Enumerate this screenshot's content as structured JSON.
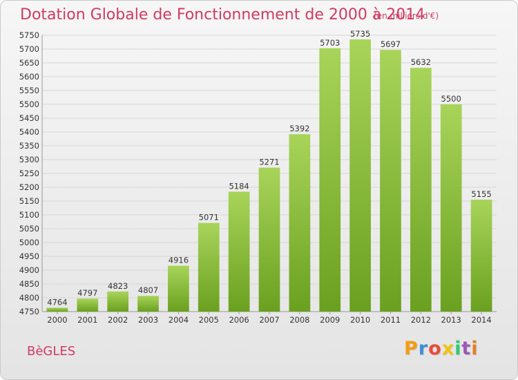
{
  "header": {
    "title": "Dotation Globale de Fonctionnement de 2000 à 2014",
    "unit": "(en milliers d'€)"
  },
  "footer": {
    "commune": "BèGLES",
    "logo_text": "Proxiti",
    "logo_colors": [
      "#f39c12",
      "#3b8fd9",
      "#e74c3c",
      "#f1c40f",
      "#2ecc71",
      "#9b59b6",
      "#e67e22"
    ]
  },
  "colors": {
    "bar_top": "#a8d45a",
    "bar_bottom": "#6aa01f",
    "grid": "#d6d6d6",
    "text": "#333333",
    "accent": "#d03a62"
  },
  "chart_data": {
    "type": "bar",
    "categories": [
      "2000",
      "2001",
      "2002",
      "2003",
      "2004",
      "2005",
      "2006",
      "2007",
      "2008",
      "2009",
      "2010",
      "2011",
      "2012",
      "2013",
      "2014"
    ],
    "values": [
      4764,
      4797,
      4823,
      4807,
      4916,
      5071,
      5184,
      5271,
      5392,
      5703,
      5735,
      5697,
      5632,
      5500,
      5155
    ],
    "ylim": [
      4750,
      5750
    ],
    "ytick_step": 50,
    "grid": true,
    "data_labels": true
  }
}
